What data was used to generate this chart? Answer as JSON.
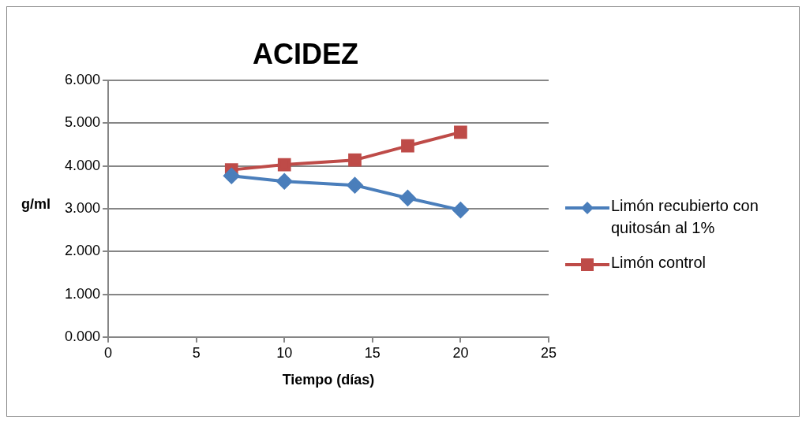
{
  "chart_data": {
    "type": "line",
    "title": "ACIDEZ",
    "xlabel": "Tiempo (días)",
    "ylabel": "g/ml",
    "x": [
      7,
      10,
      14,
      17,
      20
    ],
    "series": [
      {
        "name": "Limón recubierto con quitosán al 1%",
        "color": "#4a7ebb",
        "marker": "diamond",
        "values": [
          3.77,
          3.64,
          3.55,
          3.25,
          2.97
        ]
      },
      {
        "name": "Limón control",
        "color": "#be4b48",
        "marker": "square",
        "values": [
          3.91,
          4.03,
          4.14,
          4.47,
          4.79
        ]
      }
    ],
    "xlim": [
      0,
      25
    ],
    "xticks": [
      0,
      5,
      10,
      15,
      20,
      25
    ],
    "ylim": [
      0,
      6
    ],
    "yticks": [
      {
        "value": 0,
        "label": "0.000"
      },
      {
        "value": 1,
        "label": "1.000"
      },
      {
        "value": 2,
        "label": "2.000"
      },
      {
        "value": 3,
        "label": "3.000"
      },
      {
        "value": 4,
        "label": "4.000"
      },
      {
        "value": 5,
        "label": "5.000"
      },
      {
        "value": 6,
        "label": "6.000"
      }
    ],
    "grid": "y",
    "legend": "right"
  }
}
